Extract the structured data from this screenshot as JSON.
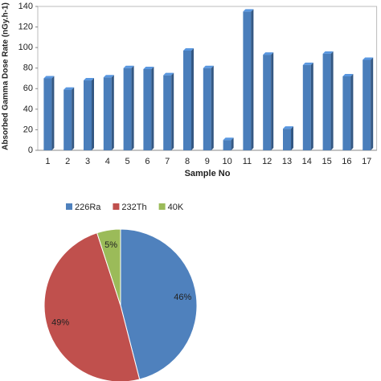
{
  "chart_data": [
    {
      "type": "bar",
      "y_label": "Absorbed Gamma Dose Rate (nGy.h-1)",
      "x_label": "Sample No",
      "categories": [
        "1",
        "2",
        "3",
        "4",
        "5",
        "6",
        "7",
        "8",
        "9",
        "10",
        "11",
        "12",
        "13",
        "14",
        "15",
        "16",
        "17"
      ],
      "values": [
        70,
        59,
        68,
        71,
        80,
        79,
        73,
        97,
        80,
        10,
        135,
        93,
        21,
        83,
        94,
        72,
        88
      ],
      "color": "#4a7ebb",
      "ylim": [
        0,
        140
      ],
      "yticks": [
        0,
        20,
        40,
        60,
        80,
        100,
        120,
        140
      ],
      "grid": false
    },
    {
      "type": "pie",
      "categories": [
        "226Ra",
        "232Th",
        "40K"
      ],
      "values": [
        46,
        49,
        5
      ],
      "value_labels": [
        "46%",
        "49%",
        "5%"
      ],
      "colors": [
        "#4f81bd",
        "#c0504d",
        "#9bbb59"
      ],
      "legend": "top"
    }
  ]
}
